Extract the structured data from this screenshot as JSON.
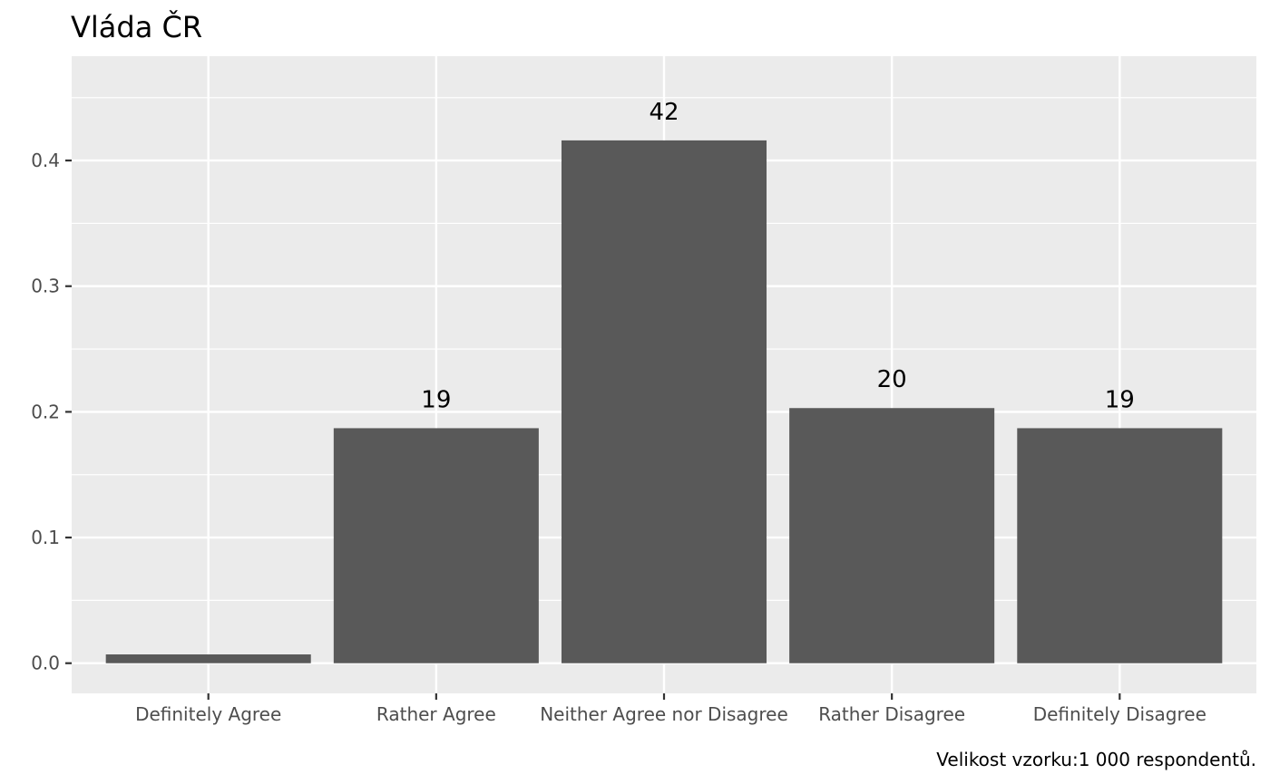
{
  "chart_data": {
    "type": "bar",
    "title": "Vláda ČR",
    "xlabel": "",
    "ylabel": "",
    "categories": [
      "Definitely Agree",
      "Rather Agree",
      "Neither Agree nor Disagree",
      "Rather Disagree",
      "Definitely Disagree"
    ],
    "values": [
      0.007,
      0.187,
      0.416,
      0.203,
      0.187
    ],
    "data_labels": [
      "",
      "19",
      "42",
      "20",
      "19"
    ],
    "ylim": [
      -0.024,
      0.483
    ],
    "yticks": [
      0.0,
      0.1,
      0.2,
      0.3,
      0.4
    ],
    "ytick_labels": [
      "0.0",
      "0.1",
      "0.2",
      "0.3",
      "0.4"
    ],
    "grid": true,
    "caption": "Velikost vzorku:1 000 respondentů.",
    "colors": {
      "bar": "#595959",
      "panel": "#ebebeb",
      "grid": "#ffffff"
    }
  }
}
